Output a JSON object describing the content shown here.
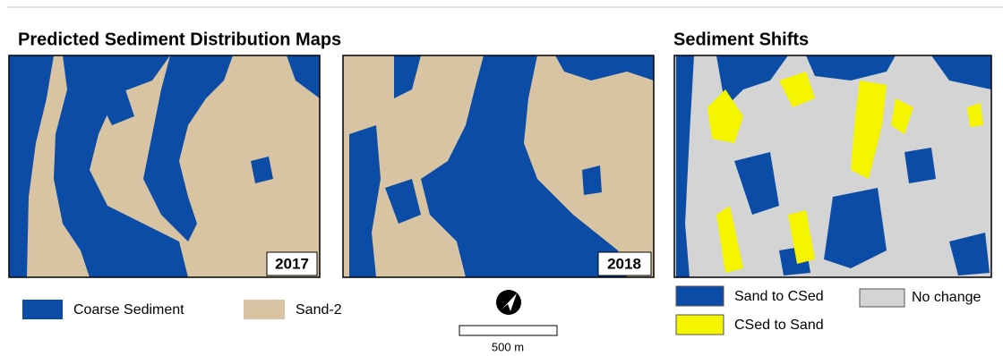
{
  "left_panel": {
    "title": "Predicted Sediment Distribution Maps",
    "maps": [
      {
        "year": "2017"
      },
      {
        "year": "2018"
      }
    ],
    "legend": [
      {
        "label": "Coarse Sediment",
        "color": "#0b4ca6"
      },
      {
        "label": "Sand-2",
        "color": "#d8c4a2"
      }
    ],
    "scale_bar": {
      "label": "500 m"
    }
  },
  "right_panel": {
    "title": "Sediment Shifts",
    "legend": [
      {
        "label": "Sand to CSed",
        "color": "#0b4ca6"
      },
      {
        "label": "No change",
        "color": "#d4d4d4"
      },
      {
        "label": "CSed to Sand",
        "color": "#f5f500"
      }
    ]
  }
}
